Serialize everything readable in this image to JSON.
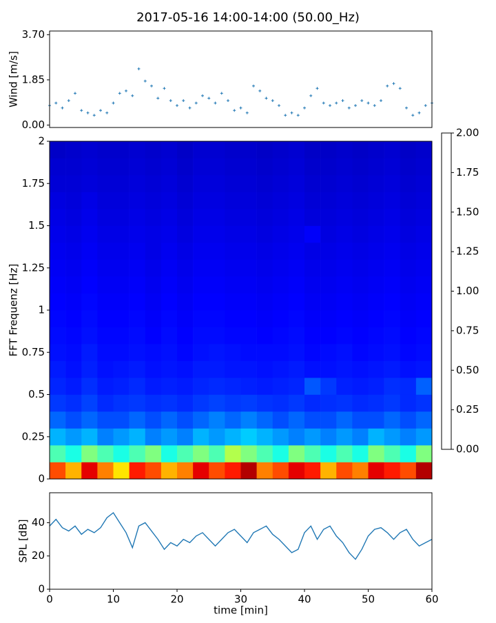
{
  "title": "2017-05-16 14:00-14:00 (50.00_Hz)",
  "chart_data": [
    {
      "type": "scatter",
      "ylabel": "Wind [m/s]",
      "color": "#1f77b4",
      "xlim": [
        0,
        60
      ],
      "ylim": [
        -0.1,
        3.85
      ],
      "yticks": [
        {
          "value": 0,
          "label": "0.00"
        },
        1.85,
        {
          "value": 3.7,
          "label": "3.70"
        }
      ],
      "x": [
        0,
        1,
        2,
        3,
        4,
        5,
        6,
        7,
        8,
        9,
        10,
        11,
        12,
        13,
        14,
        15,
        16,
        17,
        18,
        19,
        20,
        21,
        22,
        23,
        24,
        25,
        26,
        27,
        28,
        29,
        30,
        31,
        32,
        33,
        34,
        35,
        36,
        37,
        38,
        39,
        40,
        41,
        42,
        43,
        44,
        45,
        46,
        47,
        48,
        49,
        50,
        51,
        52,
        53,
        54,
        55,
        56,
        57,
        58,
        59,
        60
      ],
      "y": [
        0.8,
        0.9,
        0.7,
        1.0,
        1.3,
        0.6,
        0.5,
        0.4,
        0.6,
        0.5,
        0.9,
        1.3,
        1.4,
        1.2,
        2.3,
        1.8,
        1.6,
        1.1,
        1.5,
        1.0,
        0.8,
        1.0,
        0.7,
        0.9,
        1.2,
        1.1,
        0.9,
        1.3,
        1.0,
        0.6,
        0.7,
        0.5,
        1.6,
        1.4,
        1.1,
        1.0,
        0.8,
        0.4,
        0.5,
        0.4,
        0.7,
        1.2,
        1.5,
        0.9,
        0.8,
        0.9,
        1.0,
        0.7,
        0.8,
        1.0,
        0.9,
        0.8,
        1.0,
        1.6,
        1.7,
        1.5,
        0.7,
        0.4,
        0.5,
        0.8,
        0.9
      ]
    },
    {
      "type": "heatmap",
      "ylabel": "FFT Frequenz [Hz]",
      "colormap": "jet",
      "xlim": [
        0,
        60
      ],
      "ylim": [
        0,
        2
      ],
      "yticks": [
        0,
        0.25,
        0.5,
        0.75,
        1,
        1.25,
        1.5,
        1.75,
        2
      ],
      "vlim": [
        0,
        2
      ],
      "cticks": [
        {
          "value": 0,
          "label": "0.00"
        },
        0.25,
        {
          "value": 0.5,
          "label": "0.50"
        },
        0.75,
        {
          "value": 1,
          "label": "1.00"
        },
        1.25,
        {
          "value": 1.5,
          "label": "1.50"
        },
        1.75,
        {
          "value": 2,
          "label": "2.00"
        }
      ],
      "xbins": [
        0,
        2.5,
        5,
        7.5,
        10,
        12.5,
        15,
        17.5,
        20,
        22.5,
        25,
        27.5,
        30,
        32.5,
        35,
        37.5,
        40,
        42.5,
        45,
        47.5,
        50,
        52.5,
        55,
        57.5,
        60
      ],
      "ybins": [
        0,
        0.1,
        0.2,
        0.3,
        0.4,
        0.5,
        0.6,
        0.7,
        0.8,
        0.9,
        1.0,
        1.1,
        1.2,
        1.3,
        1.4,
        1.5,
        1.6,
        1.7,
        1.8,
        1.9,
        2.0
      ],
      "z": [
        [
          1.6,
          1.4,
          1.8,
          1.5,
          1.3,
          1.7,
          1.6,
          1.4,
          1.5,
          1.8,
          1.6,
          1.7,
          1.9,
          1.5,
          1.6,
          1.8,
          1.7,
          1.4,
          1.6,
          1.5,
          1.8,
          1.7,
          1.6,
          1.9
        ],
        [
          0.9,
          0.8,
          1.0,
          0.9,
          0.8,
          0.9,
          1.0,
          0.8,
          0.9,
          1.0,
          0.9,
          1.1,
          1.0,
          0.9,
          0.8,
          1.0,
          0.9,
          0.8,
          0.9,
          0.8,
          1.0,
          0.9,
          0.8,
          1.0
        ],
        [
          0.6,
          0.55,
          0.6,
          0.5,
          0.55,
          0.6,
          0.5,
          0.55,
          0.5,
          0.6,
          0.55,
          0.6,
          0.65,
          0.6,
          0.55,
          0.5,
          0.55,
          0.5,
          0.55,
          0.5,
          0.6,
          0.55,
          0.5,
          0.55
        ],
        [
          0.45,
          0.4,
          0.45,
          0.4,
          0.4,
          0.45,
          0.4,
          0.45,
          0.4,
          0.45,
          0.5,
          0.45,
          0.5,
          0.45,
          0.4,
          0.45,
          0.4,
          0.4,
          0.45,
          0.4,
          0.4,
          0.45,
          0.4,
          0.45
        ],
        [
          0.36,
          0.34,
          0.38,
          0.33,
          0.35,
          0.36,
          0.34,
          0.35,
          0.33,
          0.36,
          0.38,
          0.36,
          0.37,
          0.35,
          0.34,
          0.36,
          0.33,
          0.34,
          0.35,
          0.33,
          0.34,
          0.36,
          0.33,
          0.35
        ],
        [
          0.32,
          0.3,
          0.34,
          0.3,
          0.31,
          0.33,
          0.3,
          0.31,
          0.3,
          0.32,
          0.33,
          0.32,
          0.31,
          0.3,
          0.31,
          0.32,
          0.42,
          0.36,
          0.31,
          0.3,
          0.31,
          0.34,
          0.33,
          0.44
        ],
        [
          0.3,
          0.28,
          0.31,
          0.28,
          0.29,
          0.3,
          0.28,
          0.29,
          0.28,
          0.3,
          0.3,
          0.29,
          0.29,
          0.28,
          0.29,
          0.3,
          0.28,
          0.28,
          0.29,
          0.28,
          0.29,
          0.3,
          0.28,
          0.29
        ],
        [
          0.28,
          0.27,
          0.3,
          0.27,
          0.27,
          0.28,
          0.27,
          0.28,
          0.26,
          0.28,
          0.29,
          0.28,
          0.27,
          0.27,
          0.27,
          0.28,
          0.26,
          0.27,
          0.28,
          0.26,
          0.27,
          0.28,
          0.26,
          0.27
        ],
        [
          0.27,
          0.26,
          0.28,
          0.26,
          0.26,
          0.27,
          0.25,
          0.27,
          0.25,
          0.27,
          0.27,
          0.26,
          0.26,
          0.25,
          0.26,
          0.27,
          0.25,
          0.25,
          0.26,
          0.25,
          0.26,
          0.27,
          0.25,
          0.26
        ],
        [
          0.26,
          0.25,
          0.27,
          0.25,
          0.25,
          0.26,
          0.24,
          0.26,
          0.24,
          0.26,
          0.26,
          0.25,
          0.25,
          0.24,
          0.25,
          0.26,
          0.24,
          0.24,
          0.25,
          0.24,
          0.25,
          0.26,
          0.24,
          0.25
        ],
        [
          0.25,
          0.24,
          0.26,
          0.24,
          0.24,
          0.25,
          0.23,
          0.25,
          0.23,
          0.25,
          0.25,
          0.24,
          0.24,
          0.23,
          0.24,
          0.25,
          0.23,
          0.23,
          0.24,
          0.23,
          0.24,
          0.25,
          0.23,
          0.24
        ],
        [
          0.24,
          0.23,
          0.25,
          0.23,
          0.23,
          0.24,
          0.22,
          0.24,
          0.22,
          0.24,
          0.24,
          0.23,
          0.23,
          0.22,
          0.23,
          0.24,
          0.22,
          0.22,
          0.23,
          0.22,
          0.23,
          0.24,
          0.22,
          0.23
        ],
        [
          0.23,
          0.22,
          0.24,
          0.22,
          0.22,
          0.23,
          0.21,
          0.23,
          0.21,
          0.23,
          0.23,
          0.22,
          0.22,
          0.21,
          0.22,
          0.23,
          0.21,
          0.21,
          0.22,
          0.21,
          0.22,
          0.23,
          0.21,
          0.22
        ],
        [
          0.22,
          0.21,
          0.23,
          0.21,
          0.21,
          0.22,
          0.2,
          0.22,
          0.2,
          0.22,
          0.22,
          0.21,
          0.21,
          0.2,
          0.21,
          0.22,
          0.2,
          0.2,
          0.21,
          0.2,
          0.21,
          0.22,
          0.2,
          0.21
        ],
        [
          0.21,
          0.2,
          0.22,
          0.2,
          0.2,
          0.21,
          0.2,
          0.21,
          0.19,
          0.21,
          0.21,
          0.2,
          0.2,
          0.19,
          0.2,
          0.21,
          0.24,
          0.19,
          0.2,
          0.19,
          0.2,
          0.21,
          0.19,
          0.2
        ],
        [
          0.2,
          0.19,
          0.21,
          0.19,
          0.19,
          0.2,
          0.19,
          0.2,
          0.18,
          0.2,
          0.2,
          0.19,
          0.19,
          0.18,
          0.19,
          0.2,
          0.18,
          0.18,
          0.19,
          0.18,
          0.19,
          0.2,
          0.18,
          0.19
        ],
        [
          0.19,
          0.18,
          0.2,
          0.18,
          0.18,
          0.19,
          0.18,
          0.19,
          0.17,
          0.19,
          0.19,
          0.18,
          0.18,
          0.17,
          0.18,
          0.19,
          0.17,
          0.17,
          0.18,
          0.17,
          0.18,
          0.19,
          0.17,
          0.18
        ],
        [
          0.17,
          0.17,
          0.18,
          0.17,
          0.17,
          0.18,
          0.17,
          0.18,
          0.16,
          0.18,
          0.18,
          0.17,
          0.17,
          0.16,
          0.17,
          0.18,
          0.16,
          0.16,
          0.17,
          0.16,
          0.17,
          0.18,
          0.16,
          0.17
        ],
        [
          0.16,
          0.16,
          0.17,
          0.16,
          0.16,
          0.17,
          0.16,
          0.17,
          0.15,
          0.17,
          0.17,
          0.16,
          0.16,
          0.15,
          0.16,
          0.17,
          0.15,
          0.15,
          0.16,
          0.15,
          0.16,
          0.17,
          0.15,
          0.16
        ],
        [
          0.14,
          0.15,
          0.16,
          0.15,
          0.15,
          0.16,
          0.15,
          0.16,
          0.14,
          0.16,
          0.16,
          0.15,
          0.15,
          0.14,
          0.15,
          0.16,
          0.14,
          0.14,
          0.15,
          0.14,
          0.15,
          0.16,
          0.14,
          0.15
        ]
      ]
    },
    {
      "type": "line",
      "xlabel": "time [min]",
      "ylabel": "SPL [dB]",
      "color": "#1f77b4",
      "xlim": [
        0,
        60
      ],
      "ylim": [
        0,
        58
      ],
      "xticks": [
        0,
        10,
        20,
        30,
        40,
        50,
        60
      ],
      "yticks": [
        0,
        20,
        40
      ],
      "x": [
        0,
        1,
        2,
        3,
        4,
        5,
        6,
        7,
        8,
        9,
        10,
        11,
        12,
        13,
        14,
        15,
        16,
        17,
        18,
        19,
        20,
        21,
        22,
        23,
        24,
        25,
        26,
        27,
        28,
        29,
        30,
        31,
        32,
        33,
        34,
        35,
        36,
        37,
        38,
        39,
        40,
        41,
        42,
        43,
        44,
        45,
        46,
        47,
        48,
        49,
        50,
        51,
        52,
        53,
        54,
        55,
        56,
        57,
        58,
        59,
        60
      ],
      "y": [
        38,
        42,
        37,
        35,
        38,
        33,
        36,
        34,
        37,
        43,
        46,
        40,
        34,
        25,
        38,
        40,
        35,
        30,
        24,
        28,
        26,
        30,
        28,
        32,
        34,
        30,
        26,
        30,
        34,
        36,
        32,
        28,
        34,
        36,
        38,
        33,
        30,
        26,
        22,
        24,
        34,
        38,
        30,
        36,
        38,
        32,
        28,
        22,
        18,
        24,
        32,
        36,
        37,
        34,
        30,
        34,
        36,
        30,
        26,
        28,
        30
      ]
    }
  ]
}
